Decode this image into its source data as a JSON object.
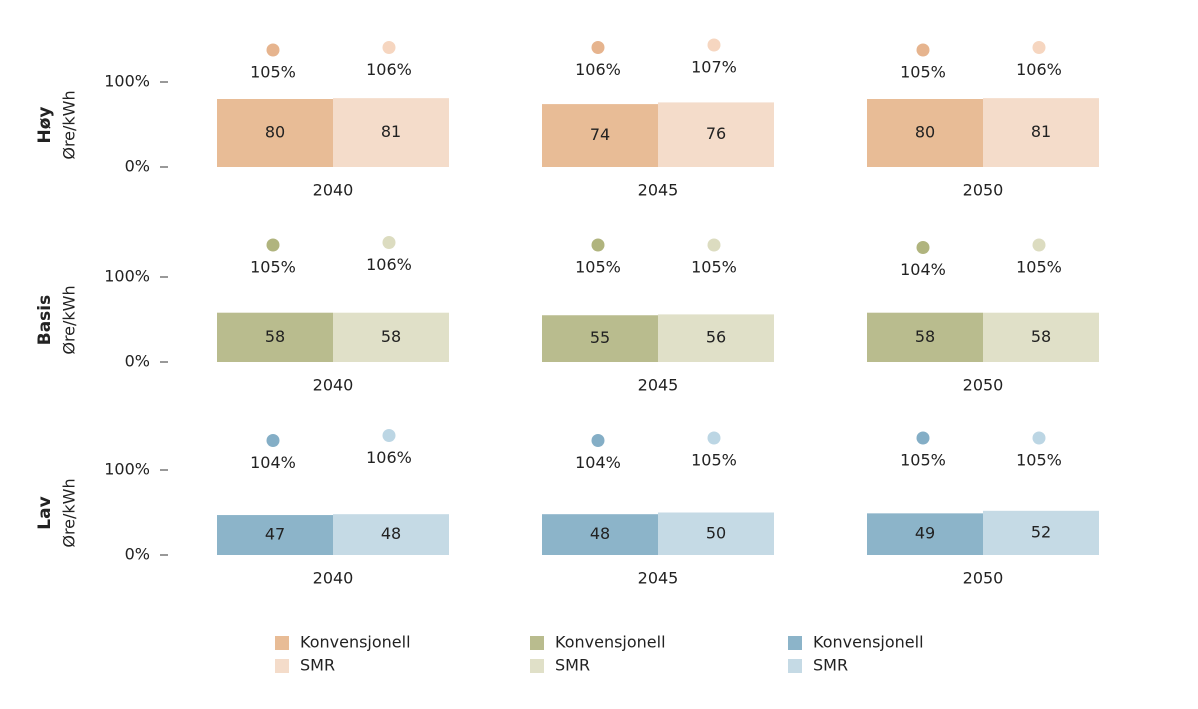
{
  "chart_data": [
    {
      "type": "bar",
      "title": "Høy",
      "y_label": "Øre/kWh",
      "categories": [
        "2040",
        "2045",
        "2050"
      ],
      "ylim": [
        0,
        100
      ],
      "yticks": [
        {
          "value": 0,
          "label": "0%"
        },
        {
          "value": 100,
          "label": "100%"
        }
      ],
      "series": [
        {
          "name": "Konvensjonell",
          "color": "#e8bc96",
          "dot_color": "#e6b48e",
          "values": [
            80,
            74,
            80
          ],
          "points": [
            105,
            106,
            105
          ],
          "point_labels": [
            "105%",
            "106%",
            "105%"
          ]
        },
        {
          "name": "SMR",
          "color": "#f4dcca",
          "dot_color": "#f6d6c0",
          "values": [
            81,
            76,
            81
          ],
          "points": [
            106,
            107,
            106
          ],
          "point_labels": [
            "106%",
            "107%",
            "106%"
          ]
        }
      ]
    },
    {
      "type": "bar",
      "title": "Basis",
      "y_label": "Øre/kWh",
      "categories": [
        "2040",
        "2045",
        "2050"
      ],
      "ylim": [
        0,
        100
      ],
      "yticks": [
        {
          "value": 0,
          "label": "0%"
        },
        {
          "value": 100,
          "label": "100%"
        }
      ],
      "series": [
        {
          "name": "Konvensjonell",
          "color": "#b9bc8e",
          "dot_color": "#b0b47e",
          "values": [
            58,
            55,
            58
          ],
          "points": [
            105,
            105,
            104
          ],
          "point_labels": [
            "105%",
            "105%",
            "104%"
          ]
        },
        {
          "name": "SMR",
          "color": "#e0e0c8",
          "dot_color": "#dcdcc0",
          "values": [
            58,
            56,
            58
          ],
          "points": [
            106,
            105,
            105
          ],
          "point_labels": [
            "106%",
            "105%",
            "105%"
          ]
        }
      ]
    },
    {
      "type": "bar",
      "title": "Lav",
      "y_label": "Øre/kWh",
      "categories": [
        "2040",
        "2045",
        "2050"
      ],
      "ylim": [
        0,
        100
      ],
      "yticks": [
        {
          "value": 0,
          "label": "0%"
        },
        {
          "value": 100,
          "label": "100%"
        }
      ],
      "series": [
        {
          "name": "Konvensjonell",
          "color": "#8cb4c9",
          "dot_color": "#84aec6",
          "values": [
            47,
            48,
            49
          ],
          "points": [
            104,
            104,
            105
          ],
          "point_labels": [
            "104%",
            "104%",
            "105%"
          ]
        },
        {
          "name": "SMR",
          "color": "#c5dae5",
          "dot_color": "#bcd6e4",
          "values": [
            48,
            50,
            52
          ],
          "points": [
            106,
            105,
            105
          ],
          "point_labels": [
            "106%",
            "105%",
            "105%"
          ]
        }
      ]
    }
  ]
}
